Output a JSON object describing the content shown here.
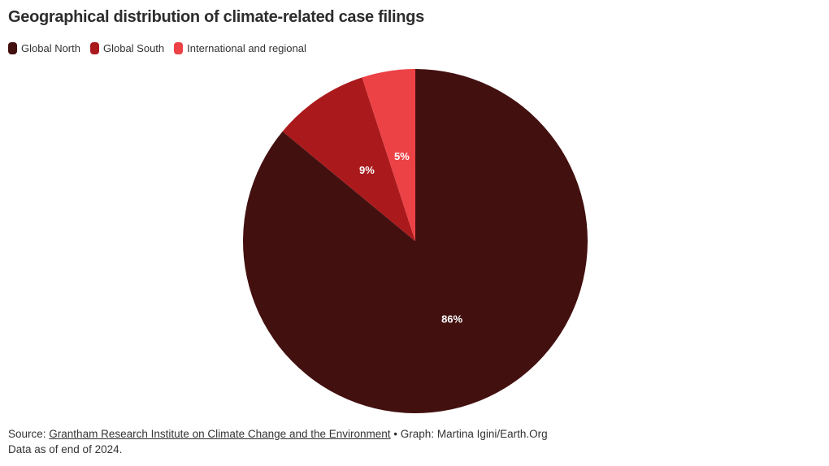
{
  "header": {
    "title": "Geographical distribution of climate-related case filings"
  },
  "legend": {
    "position": "top-left",
    "items": [
      {
        "label": "Global North",
        "color": "#431010"
      },
      {
        "label": "Global South",
        "color": "#aa1a1d"
      },
      {
        "label": "International and regional",
        "color": "#ec4145"
      }
    ]
  },
  "chart_data": {
    "type": "pie",
    "title": "Geographical distribution of climate-related case filings",
    "categories": [
      "Global North",
      "Global South",
      "International and regional"
    ],
    "values": [
      86,
      9,
      5
    ],
    "slice_labels": [
      "86%",
      "9%",
      "5%"
    ],
    "colors": [
      "#431010",
      "#aa1a1d",
      "#ec4145"
    ],
    "slice_label_color": "#ffffff",
    "start_angle": "12-o-clock",
    "direction": "clockwise",
    "legend_position": "top-left",
    "grid": false
  },
  "footer": {
    "source_prefix": "Source:",
    "source_link": "Grantham Research Institute on Climate Change and the Environment",
    "separator": "•",
    "credit": "Graph: Martina Igini/Earth.Org",
    "note": "Data as of end of 2024."
  }
}
